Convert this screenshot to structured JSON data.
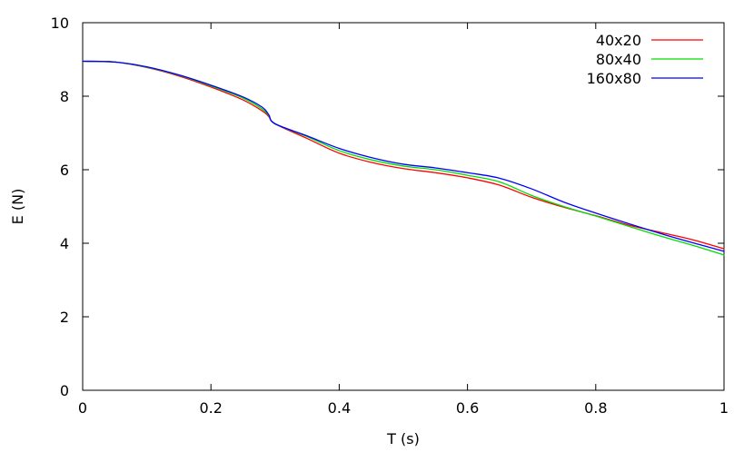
{
  "chart_data": {
    "type": "line",
    "title": "",
    "xlabel": "T (s)",
    "ylabel": "E (N)",
    "xlim": [
      0,
      1
    ],
    "ylim": [
      0,
      10
    ],
    "xticks": [
      "0",
      "0.2",
      "0.4",
      "0.6",
      "0.8",
      "1"
    ],
    "yticks": [
      "0",
      "2",
      "4",
      "6",
      "8",
      "10"
    ],
    "grid": false,
    "legend_position": "top-right",
    "series": [
      {
        "name": "40x20",
        "color": "#ff0000",
        "x": [
          0,
          0.05,
          0.1,
          0.15,
          0.2,
          0.25,
          0.28,
          0.29,
          0.3,
          0.35,
          0.4,
          0.45,
          0.5,
          0.55,
          0.6,
          0.65,
          0.7,
          0.75,
          0.8,
          0.85,
          0.9,
          0.95,
          1.0
        ],
        "y": [
          8.95,
          8.93,
          8.78,
          8.55,
          8.25,
          7.9,
          7.6,
          7.45,
          7.25,
          6.85,
          6.45,
          6.2,
          6.03,
          5.92,
          5.78,
          5.58,
          5.25,
          4.98,
          4.75,
          4.5,
          4.3,
          4.1,
          3.85
        ]
      },
      {
        "name": "80x40",
        "color": "#00dd00",
        "x": [
          0,
          0.05,
          0.1,
          0.15,
          0.2,
          0.25,
          0.28,
          0.29,
          0.3,
          0.35,
          0.4,
          0.45,
          0.5,
          0.55,
          0.6,
          0.65,
          0.7,
          0.75,
          0.8,
          0.85,
          0.9,
          0.95,
          1.0
        ],
        "y": [
          8.95,
          8.93,
          8.79,
          8.57,
          8.28,
          7.95,
          7.65,
          7.48,
          7.25,
          6.9,
          6.52,
          6.27,
          6.1,
          6.0,
          5.85,
          5.67,
          5.3,
          5.0,
          4.74,
          4.47,
          4.2,
          3.95,
          3.68
        ]
      },
      {
        "name": "160x80",
        "color": "#0000ff",
        "x": [
          0,
          0.05,
          0.1,
          0.15,
          0.2,
          0.25,
          0.28,
          0.29,
          0.3,
          0.35,
          0.4,
          0.45,
          0.5,
          0.55,
          0.6,
          0.65,
          0.7,
          0.75,
          0.8,
          0.85,
          0.9,
          0.95,
          1.0
        ],
        "y": [
          8.95,
          8.93,
          8.8,
          8.58,
          8.3,
          7.98,
          7.7,
          7.5,
          7.25,
          6.92,
          6.58,
          6.33,
          6.15,
          6.05,
          5.92,
          5.77,
          5.48,
          5.12,
          4.82,
          4.54,
          4.27,
          4.02,
          3.78
        ]
      }
    ]
  }
}
